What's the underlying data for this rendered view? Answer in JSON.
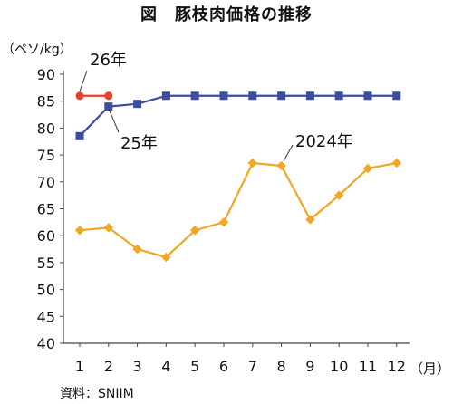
{
  "chart_data": {
    "type": "line",
    "title": "図　豚枝肉価格の推移",
    "ylabel": "（ペソ/kg）",
    "xlabel": "（月）",
    "source": "資料：SNIIM",
    "ylim": [
      40,
      90
    ],
    "yticks": [
      40,
      45,
      50,
      55,
      60,
      65,
      70,
      75,
      80,
      85,
      90
    ],
    "categories": [
      "1",
      "2",
      "3",
      "4",
      "5",
      "6",
      "7",
      "8",
      "9",
      "10",
      "11",
      "12"
    ],
    "grid": false,
    "series": [
      {
        "name": "26年",
        "color": "#e8412a",
        "marker": "circle",
        "values": [
          86,
          86,
          null,
          null,
          null,
          null,
          null,
          null,
          null,
          null,
          null,
          null
        ]
      },
      {
        "name": "25年",
        "color": "#3a4ea0",
        "marker": "square",
        "values": [
          78.5,
          84,
          84.5,
          86,
          86,
          86,
          86,
          86,
          86,
          86,
          86,
          86
        ]
      },
      {
        "name": "2024年",
        "color": "#f2a623",
        "marker": "diamond",
        "values": [
          61,
          61.5,
          57.5,
          56,
          61,
          62.5,
          73.5,
          73,
          63,
          67.5,
          72.5,
          73.5
        ]
      }
    ],
    "annotations": [
      "26年",
      "25年",
      "2024年"
    ]
  }
}
